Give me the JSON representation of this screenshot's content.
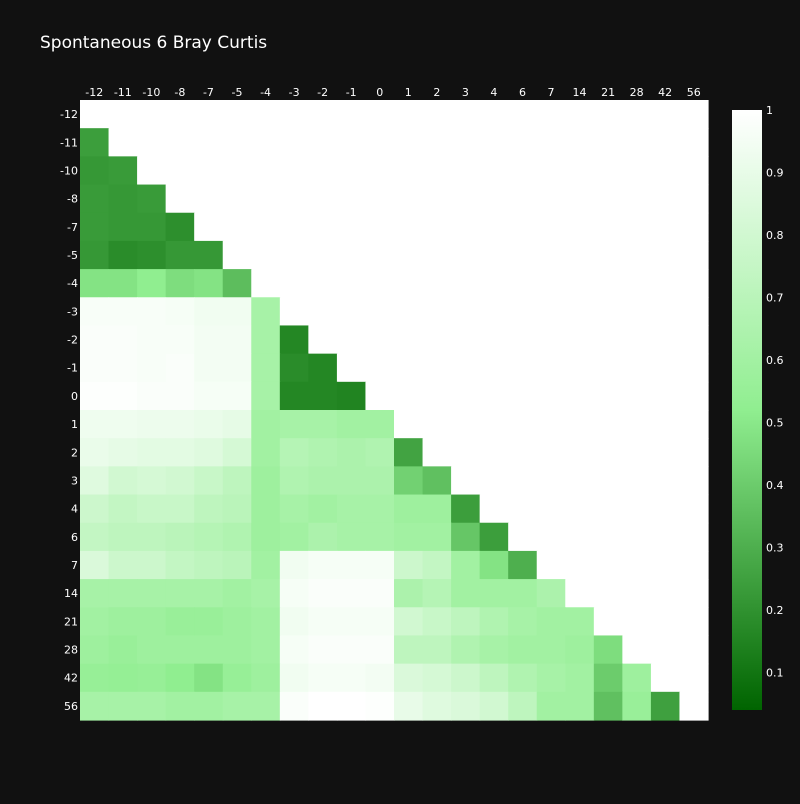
{
  "chart_data": {
    "type": "heatmap",
    "title": "Spontaneous 6 Bray Curtis",
    "x_categories": [
      "-12",
      "-11",
      "-10",
      "-8",
      "-7",
      "-5",
      "-4",
      "-3",
      "-2",
      "-1",
      "0",
      "1",
      "2",
      "3",
      "4",
      "6",
      "7",
      "14",
      "21",
      "28",
      "42",
      "56"
    ],
    "y_categories": [
      "-12",
      "-11",
      "-10",
      "-8",
      "-7",
      "-5",
      "-4",
      "-3",
      "-2",
      "-1",
      "0",
      "1",
      "2",
      "3",
      "4",
      "6",
      "7",
      "14",
      "21",
      "28",
      "42",
      "56"
    ],
    "values": [
      [
        1,
        1,
        1,
        1,
        1,
        1,
        1,
        1,
        1,
        1,
        1,
        1,
        1,
        1,
        1,
        1,
        1,
        1,
        1,
        1,
        1,
        1
      ],
      [
        0.24,
        1,
        1,
        1,
        1,
        1,
        1,
        1,
        1,
        1,
        1,
        1,
        1,
        1,
        1,
        1,
        1,
        1,
        1,
        1,
        1,
        1
      ],
      [
        0.22,
        0.23,
        1,
        1,
        1,
        1,
        1,
        1,
        1,
        1,
        1,
        1,
        1,
        1,
        1,
        1,
        1,
        1,
        1,
        1,
        1,
        1
      ],
      [
        0.23,
        0.22,
        0.23,
        1,
        1,
        1,
        1,
        1,
        1,
        1,
        1,
        1,
        1,
        1,
        1,
        1,
        1,
        1,
        1,
        1,
        1,
        1
      ],
      [
        0.23,
        0.22,
        0.22,
        0.19,
        1,
        1,
        1,
        1,
        1,
        1,
        1,
        1,
        1,
        1,
        1,
        1,
        1,
        1,
        1,
        1,
        1,
        1
      ],
      [
        0.22,
        0.18,
        0.19,
        0.22,
        0.22,
        1,
        1,
        1,
        1,
        1,
        1,
        1,
        1,
        1,
        1,
        1,
        1,
        1,
        1,
        1,
        1,
        1
      ],
      [
        0.48,
        0.48,
        0.52,
        0.46,
        0.48,
        0.35,
        1,
        1,
        1,
        1,
        1,
        1,
        1,
        1,
        1,
        1,
        1,
        1,
        1,
        1,
        1,
        1
      ],
      [
        0.97,
        0.97,
        0.97,
        0.96,
        0.94,
        0.94,
        0.62,
        1,
        1,
        1,
        1,
        1,
        1,
        1,
        1,
        1,
        1,
        1,
        1,
        1,
        1,
        1
      ],
      [
        0.98,
        0.98,
        0.97,
        0.97,
        0.95,
        0.95,
        0.62,
        0.16,
        1,
        1,
        1,
        1,
        1,
        1,
        1,
        1,
        1,
        1,
        1,
        1,
        1,
        1
      ],
      [
        0.98,
        0.98,
        0.97,
        0.98,
        0.95,
        0.95,
        0.62,
        0.18,
        0.16,
        1,
        1,
        1,
        1,
        1,
        1,
        1,
        1,
        1,
        1,
        1,
        1,
        1
      ],
      [
        0.99,
        0.99,
        0.98,
        0.98,
        0.96,
        0.96,
        0.62,
        0.16,
        0.16,
        0.15,
        1,
        1,
        1,
        1,
        1,
        1,
        1,
        1,
        1,
        1,
        1,
        1
      ],
      [
        0.93,
        0.93,
        0.92,
        0.92,
        0.91,
        0.89,
        0.6,
        0.62,
        0.62,
        0.6,
        0.6,
        1,
        1,
        1,
        1,
        1,
        1,
        1,
        1,
        1,
        1,
        1
      ],
      [
        0.91,
        0.89,
        0.88,
        0.88,
        0.86,
        0.82,
        0.6,
        0.68,
        0.66,
        0.64,
        0.66,
        0.26,
        1,
        1,
        1,
        1,
        1,
        1,
        1,
        1,
        1,
        1
      ],
      [
        0.86,
        0.8,
        0.82,
        0.8,
        0.76,
        0.72,
        0.58,
        0.66,
        0.64,
        0.64,
        0.64,
        0.42,
        0.36,
        1,
        1,
        1,
        1,
        1,
        1,
        1,
        1,
        1
      ],
      [
        0.78,
        0.74,
        0.76,
        0.76,
        0.72,
        0.7,
        0.58,
        0.62,
        0.6,
        0.62,
        0.62,
        0.58,
        0.58,
        0.24,
        1,
        1,
        1,
        1,
        1,
        1,
        1,
        1
      ],
      [
        0.74,
        0.72,
        0.72,
        0.7,
        0.68,
        0.66,
        0.58,
        0.6,
        0.64,
        0.62,
        0.62,
        0.6,
        0.6,
        0.38,
        0.24,
        1,
        1,
        1,
        1,
        1,
        1,
        1
      ],
      [
        0.84,
        0.78,
        0.78,
        0.74,
        0.72,
        0.7,
        0.6,
        0.94,
        0.96,
        0.96,
        0.96,
        0.78,
        0.74,
        0.6,
        0.48,
        0.3,
        1,
        1,
        1,
        1,
        1,
        1
      ],
      [
        0.62,
        0.62,
        0.62,
        0.62,
        0.62,
        0.6,
        0.62,
        0.96,
        0.98,
        0.98,
        0.98,
        0.64,
        0.68,
        0.6,
        0.6,
        0.6,
        0.64,
        1,
        1,
        1,
        1,
        1
      ],
      [
        0.6,
        0.58,
        0.58,
        0.56,
        0.56,
        0.58,
        0.6,
        0.94,
        0.96,
        0.96,
        0.96,
        0.8,
        0.76,
        0.72,
        0.66,
        0.62,
        0.6,
        0.6,
        1,
        1,
        1,
        1
      ],
      [
        0.58,
        0.56,
        0.58,
        0.58,
        0.58,
        0.58,
        0.6,
        0.96,
        0.98,
        0.98,
        0.98,
        0.72,
        0.72,
        0.66,
        0.62,
        0.6,
        0.6,
        0.58,
        0.46,
        1,
        1,
        1
      ],
      [
        0.55,
        0.54,
        0.55,
        0.52,
        0.48,
        0.55,
        0.58,
        0.94,
        0.96,
        0.96,
        0.95,
        0.84,
        0.82,
        0.78,
        0.72,
        0.66,
        0.62,
        0.6,
        0.4,
        0.58,
        1,
        1
      ],
      [
        0.62,
        0.62,
        0.62,
        0.6,
        0.6,
        0.62,
        0.62,
        0.98,
        1,
        1,
        0.99,
        0.9,
        0.86,
        0.84,
        0.8,
        0.72,
        0.6,
        0.6,
        0.36,
        0.56,
        0.25,
        1
      ]
    ],
    "zmin": 0.04,
    "zmax": 1,
    "colorbar_ticks": [
      0.1,
      0.2,
      0.3,
      0.4,
      0.5,
      0.6,
      0.7,
      0.8,
      0.9,
      1
    ],
    "colorscale": [
      "#006400",
      "#90ee90",
      "#ffffff"
    ],
    "background": "#111111",
    "text_color": "#ffffff"
  }
}
